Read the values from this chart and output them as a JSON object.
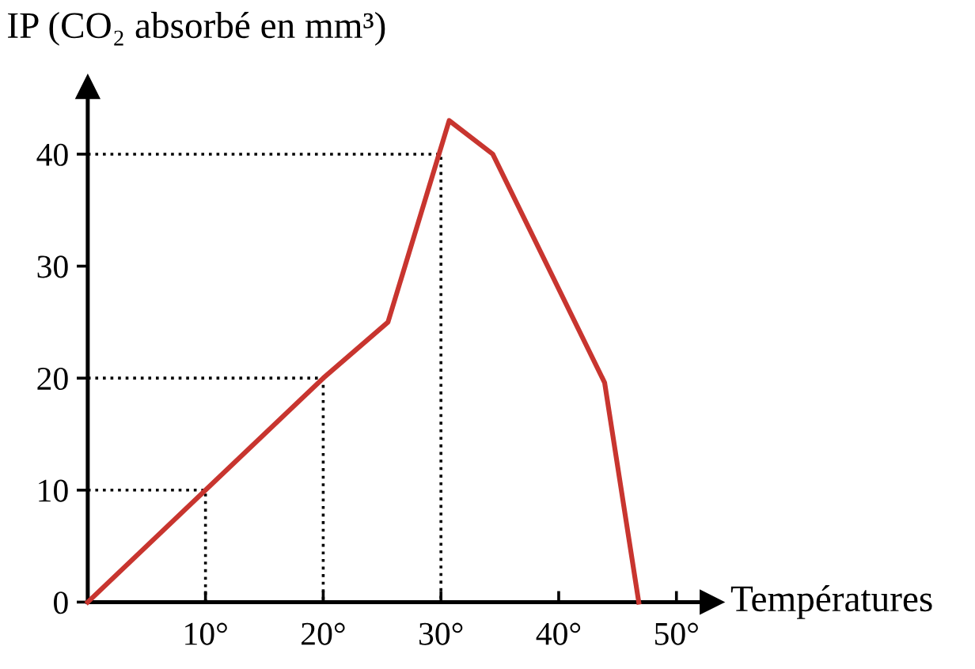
{
  "chart_data": {
    "type": "line",
    "ylabel": "IP (CO₂ absorbé en mm³)",
    "xlabel": "Températures",
    "xlim": [
      0,
      53
    ],
    "ylim": [
      0,
      46
    ],
    "xticks": [
      {
        "value": 10,
        "label": "10°"
      },
      {
        "value": 20,
        "label": "20°"
      },
      {
        "value": 30,
        "label": "30°"
      },
      {
        "value": 40,
        "label": "40°"
      },
      {
        "value": 50,
        "label": "50°"
      }
    ],
    "yticks": [
      0,
      10,
      20,
      30,
      40
    ],
    "grid": false,
    "legend": false,
    "marker": "none",
    "series": [
      {
        "color": "#c8352f",
        "line_style": "solid",
        "x": [
          0,
          10,
          20,
          25.5,
          30.7,
          34.4,
          43.9,
          46.8
        ],
        "values": [
          0,
          10,
          20,
          25,
          43,
          40,
          19.6,
          0
        ]
      },
      {
        "color": "#000000",
        "line_style": "dotted",
        "x": [
          0,
          10,
          10
        ],
        "values": [
          10,
          10,
          0
        ]
      },
      {
        "color": "#000000",
        "line_style": "dotted",
        "x": [
          0,
          20,
          20
        ],
        "values": [
          20,
          20,
          0
        ]
      },
      {
        "color": "#000000",
        "line_style": "dotted",
        "x": [
          0,
          30,
          30
        ],
        "values": [
          40,
          40,
          0
        ]
      }
    ]
  }
}
